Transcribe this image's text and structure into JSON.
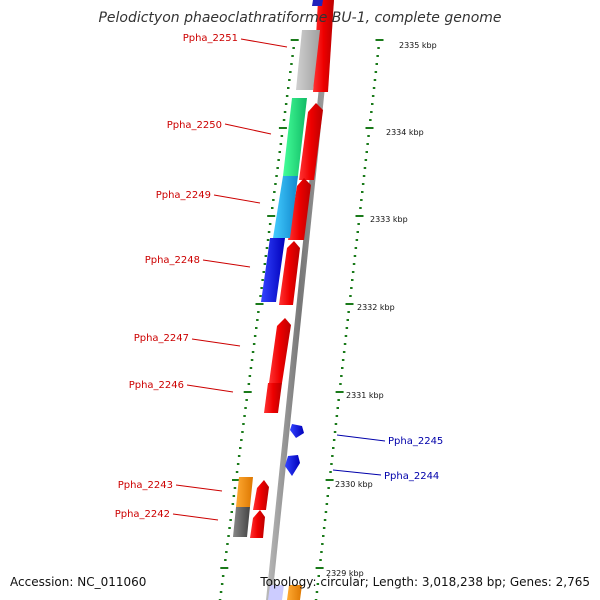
{
  "title": "Pelodictyon phaeoclathratiforme BU-1, complete genome",
  "accession": "Accession: NC_011060",
  "topology": "Topology: circular; Length: 3,018,238 bp; Genes: 2,765",
  "kbp_labels": [
    "2335 kbp",
    "2334 kbp",
    "2333 kbp",
    "2332 kbp",
    "2331 kbp",
    "2330 kbp",
    "2329 kbp"
  ],
  "genes": [
    {
      "label": "Ppha_2251",
      "color": "#cc0000"
    },
    {
      "label": "Ppha_2250",
      "color": "#cc0000"
    },
    {
      "label": "Ppha_2249",
      "color": "#cc0000"
    },
    {
      "label": "Ppha_2248",
      "color": "#cc0000"
    },
    {
      "label": "Ppha_2247",
      "color": "#cc0000"
    },
    {
      "label": "Ppha_2246",
      "color": "#cc0000"
    },
    {
      "label": "Ppha_2245",
      "color": "#0000aa"
    },
    {
      "label": "Ppha_2244",
      "color": "#0000aa"
    },
    {
      "label": "Ppha_2243",
      "color": "#cc0000"
    },
    {
      "label": "Ppha_2242",
      "color": "#cc0000"
    }
  ],
  "colors": {
    "forward_gene": "#ee0000",
    "reverse_gene": "#1a1aee",
    "backbone": "#9a9a9a",
    "ticks": "#1a7a1a",
    "gene_green": "#22dd88",
    "gene_cyan": "#22aaee",
    "gene_blue": "#1111dd",
    "gene_gray": "#bbbbbb",
    "gene_orange": "#ff8800",
    "gene_darkgray": "#666666"
  }
}
